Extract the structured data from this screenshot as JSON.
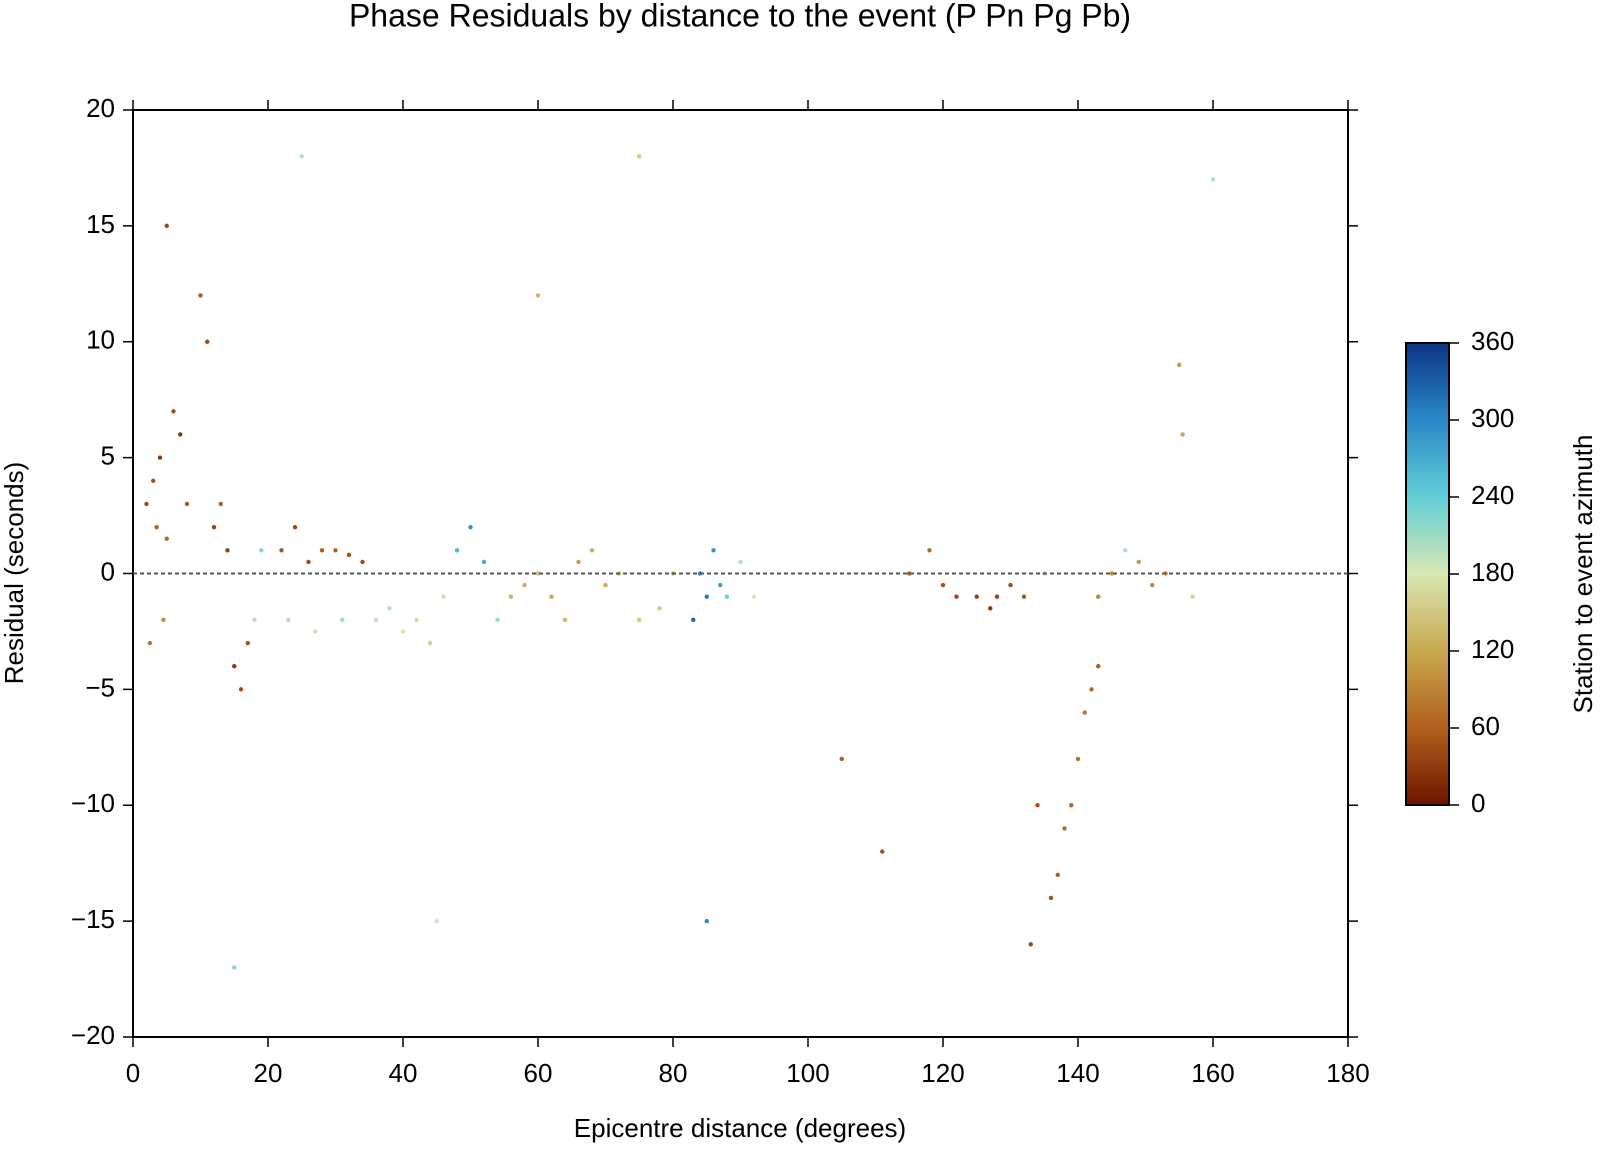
{
  "chart_data": {
    "type": "scatter",
    "title": "Phase Residuals by distance to the event (P Pn Pg Pb)",
    "xlabel": "Epicentre distance (degrees)",
    "ylabel": "Residual (seconds)",
    "xlim": [
      0,
      180
    ],
    "xticks": [
      0,
      20,
      40,
      60,
      80,
      100,
      120,
      140,
      160,
      180
    ],
    "ylim": [
      -20,
      20
    ],
    "yticks": [
      {
        "value": -20,
        "label": "−20"
      },
      {
        "value": -15,
        "label": "−15"
      },
      {
        "value": -10,
        "label": "−10"
      },
      {
        "value": -5,
        "label": "−5"
      },
      0,
      5,
      10,
      15,
      20
    ],
    "reference_line": 0,
    "colorbar": {
      "label": "Station to event azimuth",
      "clim": [
        0,
        360
      ],
      "cticks": [
        0,
        60,
        120,
        180,
        240,
        300,
        360
      ],
      "colormap": [
        "#6e1400",
        "#b0601c",
        "#c9a850",
        "#d8e8b2",
        "#62cfd8",
        "#2a88c6",
        "#0b3485"
      ]
    },
    "x": [
      2,
      3,
      3.5,
      4,
      5,
      6,
      2.5,
      4.5,
      7,
      8,
      12,
      14,
      15,
      16,
      17,
      13,
      11,
      18,
      19,
      10,
      22,
      24,
      26,
      28,
      30,
      32,
      34,
      23,
      27,
      31,
      36,
      38,
      40,
      42,
      44,
      46,
      48,
      50,
      52,
      54,
      56,
      58,
      60,
      62,
      64,
      66,
      68,
      70,
      72,
      75,
      84,
      85,
      86,
      87,
      83,
      88,
      90,
      92,
      78,
      80,
      115,
      120,
      122,
      125,
      127,
      128,
      130,
      132,
      118,
      135,
      143,
      145,
      147,
      149,
      151,
      153,
      155,
      155.5,
      157,
      159,
      136,
      137,
      138,
      139,
      140,
      141,
      142,
      143,
      134,
      133,
      5,
      15,
      25,
      45,
      60,
      75,
      85,
      105,
      111,
      160
    ],
    "y": [
      3,
      4,
      2,
      5,
      1.5,
      7,
      -3,
      -2,
      6,
      3,
      2,
      1,
      -4,
      -5,
      -3,
      3,
      10,
      -2,
      1,
      12,
      1,
      2,
      0.5,
      1,
      1,
      0.8,
      0.5,
      -2,
      -2.5,
      -2,
      -2,
      -1.5,
      -2.5,
      -2,
      -3,
      -1,
      1,
      2,
      0.5,
      -2,
      -1,
      -0.5,
      0,
      -1,
      -2,
      0.5,
      1,
      -0.5,
      0,
      -2,
      0,
      -1,
      1,
      -0.5,
      -2,
      -1,
      0.5,
      -1,
      -1.5,
      0,
      0,
      -0.5,
      -1,
      -1,
      -1.5,
      -1,
      -0.5,
      -1,
      1,
      0,
      -1,
      0,
      1,
      0.5,
      -0.5,
      0,
      9,
      6,
      -1,
      0,
      -14,
      -13,
      -11,
      -10,
      -8,
      -6,
      -5,
      -4,
      -10,
      -16,
      15,
      -17,
      18,
      -15,
      12,
      18,
      -15,
      -8,
      -12,
      17
    ],
    "c": [
      40,
      50,
      60,
      30,
      70,
      45,
      80,
      100,
      25,
      55,
      40,
      35,
      30,
      45,
      50,
      60,
      40,
      200,
      220,
      55,
      50,
      40,
      45,
      55,
      60,
      50,
      45,
      200,
      190,
      210,
      190,
      200,
      185,
      170,
      160,
      190,
      260,
      290,
      270,
      210,
      130,
      125,
      140,
      120,
      135,
      110,
      130,
      125,
      145,
      150,
      300,
      310,
      290,
      280,
      320,
      240,
      200,
      180,
      150,
      140,
      60,
      50,
      40,
      35,
      30,
      40,
      45,
      55,
      70,
      200,
      90,
      100,
      200,
      110,
      95,
      100,
      110,
      120,
      160,
      180,
      50,
      60,
      70,
      65,
      75,
      80,
      70,
      60,
      50,
      40,
      40,
      220,
      200,
      190,
      130,
      150,
      300,
      60,
      50,
      200
    ]
  }
}
